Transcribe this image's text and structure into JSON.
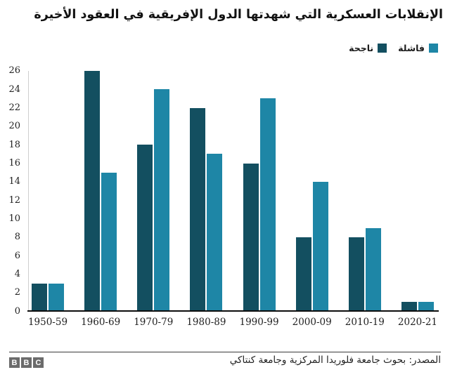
{
  "chart_data": {
    "type": "bar",
    "title": "الإنقلابات العسكرية التي شهدتها الدول الإفريقية في العقود الأخيرة",
    "categories": [
      "1950-59",
      "1960-69",
      "1970-79",
      "1980-89",
      "1990-99",
      "2000-09",
      "2010-19",
      "2020-21"
    ],
    "series": [
      {
        "name": "ناجحة",
        "role": "successful",
        "color": "#134f60",
        "values": [
          3,
          26,
          18,
          22,
          16,
          8,
          8,
          1
        ]
      },
      {
        "name": "فاشلة",
        "role": "failed",
        "color": "#1e86a6",
        "values": [
          3,
          15,
          24,
          17,
          23,
          14,
          9,
          1
        ]
      }
    ],
    "xlabel": "",
    "ylabel": "",
    "ylim": [
      0,
      26
    ],
    "yticks": [
      0,
      2,
      4,
      6,
      8,
      10,
      12,
      14,
      16,
      18,
      20,
      22,
      24,
      26
    ],
    "grid": false,
    "legend_position": "top-right"
  },
  "colors": {
    "successful_bar": "#134f60",
    "failed_bar": "#1e86a6",
    "axis_text": "#222222",
    "baseline": "#0d0d0d",
    "yaxis_line": "#cfcfcf",
    "bbc_gray": "#6b6b6b"
  },
  "footer": {
    "source_label": "المصدر: بحوث جامعة فلوريدا المركزية وجامعة كنتاكي",
    "logo_letters": [
      "B",
      "B",
      "C"
    ]
  }
}
